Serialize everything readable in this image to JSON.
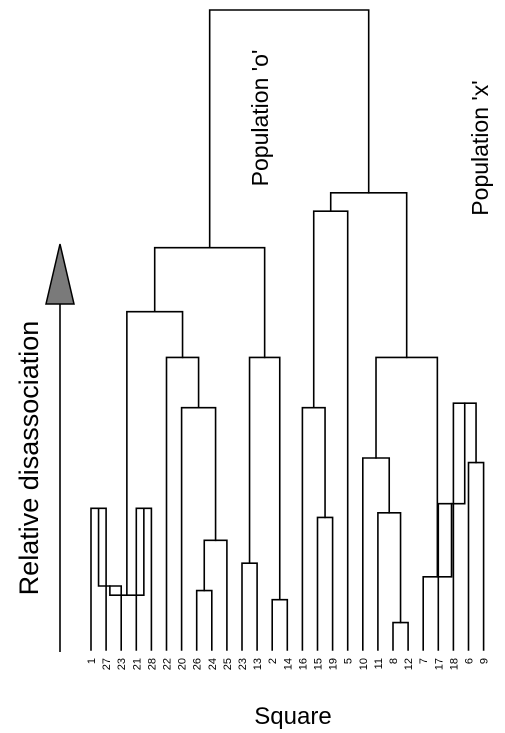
{
  "y_axis_label": "Relative disassociation",
  "x_axis_label": "Square",
  "group_labels": [
    "Population 'o'",
    "Population 'x'"
  ],
  "leaves": [
    "1",
    "27",
    "23",
    "21",
    "28",
    "22",
    "20",
    "26",
    "24",
    "25",
    "23",
    "13",
    "2",
    "14",
    "16",
    "15",
    "19",
    "5",
    "10",
    "11",
    "8",
    "12",
    "7",
    "17",
    "18",
    "6",
    "9"
  ],
  "links": [
    {
      "a": 0,
      "b": 1,
      "h": 0.31
    },
    {
      "a": 3,
      "b": 4,
      "h": 0.31
    },
    {
      "a": 2,
      "b": 27,
      "h": 0.14
    },
    {
      "a": 28,
      "b": 29,
      "h": 0.12
    },
    {
      "a": 7,
      "b": 8,
      "h": 0.13
    },
    {
      "a": 31,
      "b": 9,
      "h": 0.24
    },
    {
      "a": 6,
      "b": 32,
      "h": 0.53
    },
    {
      "a": 5,
      "b": 33,
      "h": 0.64
    },
    {
      "a": 30,
      "b": 34,
      "h": 0.74
    },
    {
      "a": 10,
      "b": 11,
      "h": 0.19
    },
    {
      "a": 12,
      "b": 13,
      "h": 0.11
    },
    {
      "a": 36,
      "b": 37,
      "h": 0.64
    },
    {
      "a": 35,
      "b": 38,
      "h": 0.88
    },
    {
      "a": 15,
      "b": 16,
      "h": 0.29
    },
    {
      "a": 14,
      "b": 40,
      "h": 0.53
    },
    {
      "a": 41,
      "b": 17,
      "h": 0.96
    },
    {
      "a": 20,
      "b": 21,
      "h": 0.06
    },
    {
      "a": 19,
      "b": 43,
      "h": 0.3
    },
    {
      "a": 18,
      "b": 44,
      "h": 0.42
    },
    {
      "a": 25,
      "b": 26,
      "h": 0.41
    },
    {
      "a": 24,
      "b": 46,
      "h": 0.54
    },
    {
      "a": 23,
      "b": 47,
      "h": 0.32
    },
    {
      "a": 22,
      "b": 48,
      "h": 0.16
    },
    {
      "a": 45,
      "b": 49,
      "h": 0.64
    },
    {
      "a": 42,
      "b": 50,
      "h": 1.0
    },
    {
      "a": 39,
      "b": 51,
      "h": 1.4
    }
  ]
}
